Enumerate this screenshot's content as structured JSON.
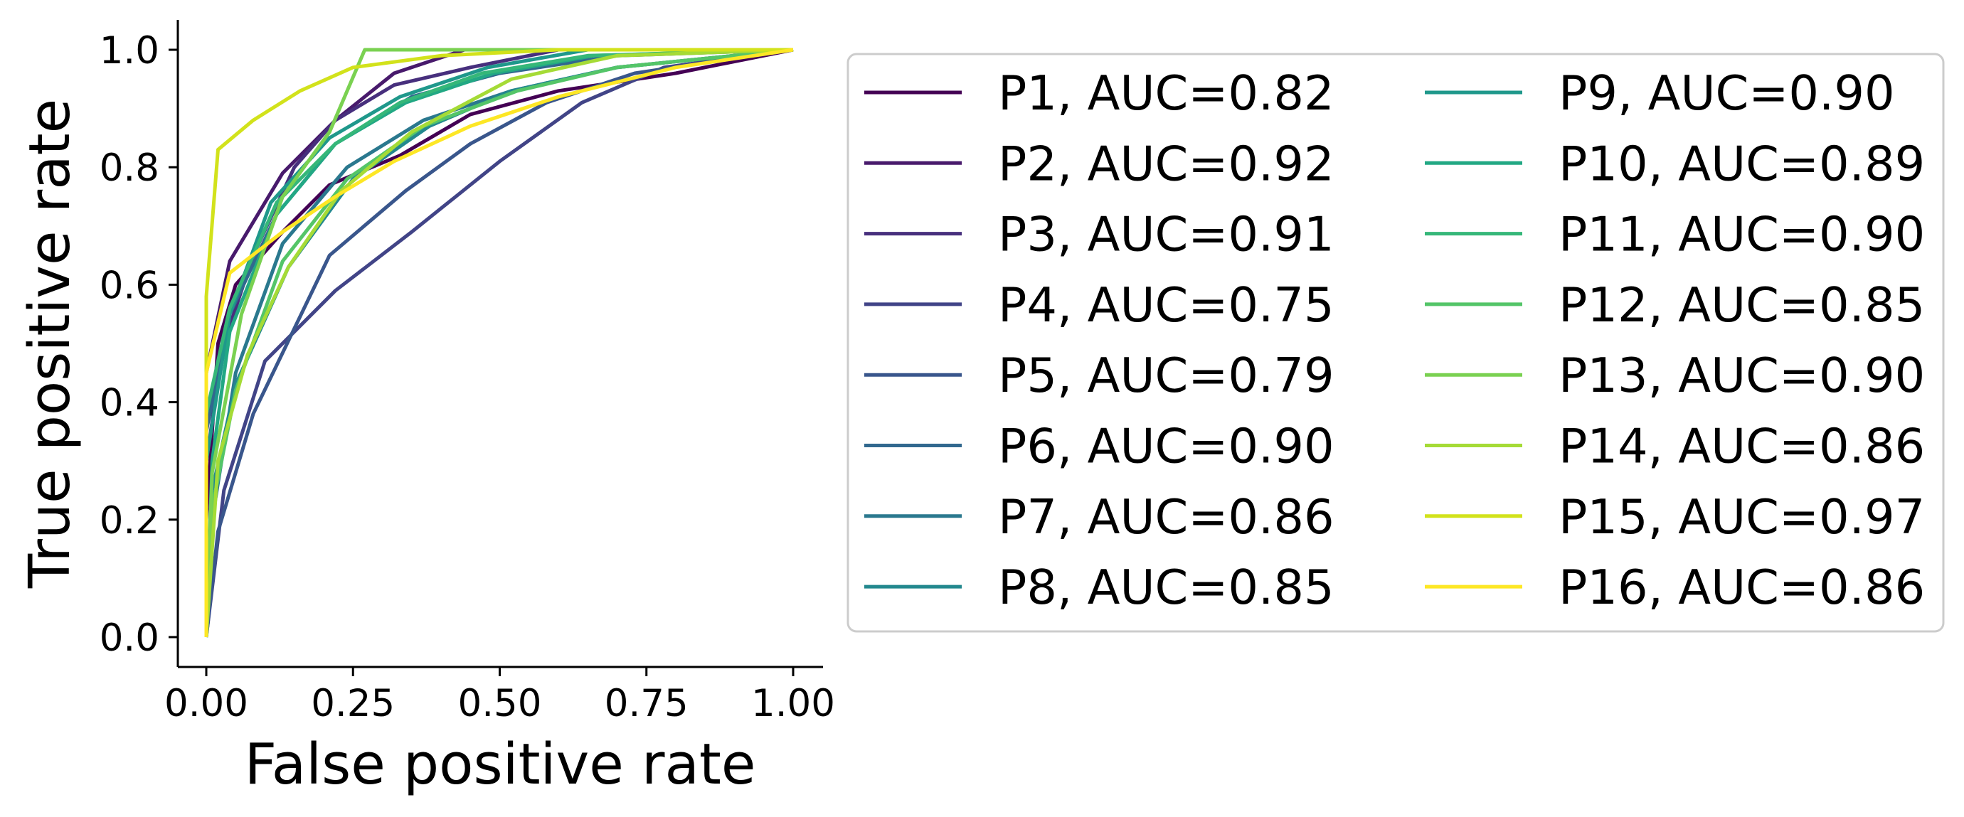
{
  "chart_data": {
    "type": "line",
    "title": "",
    "xlabel": "False positive rate",
    "ylabel": "True positive rate",
    "xlim": [
      -0.05,
      1.05
    ],
    "ylim": [
      -0.05,
      1.05
    ],
    "xticks": [
      "0.00",
      "0.25",
      "0.50",
      "0.75",
      "1.00"
    ],
    "yticks": [
      "0.0",
      "0.2",
      "0.4",
      "0.6",
      "0.8",
      "1.0"
    ],
    "grid": false,
    "legend": {
      "placement": "right, outside",
      "columns": 2
    },
    "series": [
      {
        "name": "P1, AUC=0.82",
        "color": "#440154",
        "x": [
          0,
          0,
          0.02,
          0.05,
          0.13,
          0.21,
          0.33,
          0.45,
          0.6,
          0.8,
          1.0
        ],
        "y": [
          0,
          0.2,
          0.5,
          0.6,
          0.69,
          0.77,
          0.82,
          0.89,
          0.93,
          0.96,
          1.0
        ]
      },
      {
        "name": "P2, AUC=0.92",
        "color": "#481a6c",
        "x": [
          0,
          0,
          0.04,
          0.13,
          0.22,
          0.32,
          0.44,
          0.6,
          1.0
        ],
        "y": [
          0,
          0.45,
          0.64,
          0.79,
          0.88,
          0.96,
          1.0,
          1.0,
          1.0
        ]
      },
      {
        "name": "P3, AUC=0.91",
        "color": "#472f7d",
        "x": [
          0,
          0,
          0.03,
          0.08,
          0.15,
          0.22,
          0.32,
          0.45,
          0.6,
          1.0
        ],
        "y": [
          0,
          0.3,
          0.5,
          0.65,
          0.8,
          0.88,
          0.94,
          0.97,
          1.0,
          1.0
        ]
      },
      {
        "name": "P4, AUC=0.75",
        "color": "#414487",
        "x": [
          0,
          0.03,
          0.1,
          0.22,
          0.35,
          0.5,
          0.64,
          0.78,
          1.0
        ],
        "y": [
          0,
          0.25,
          0.47,
          0.59,
          0.69,
          0.81,
          0.91,
          0.97,
          1.0
        ]
      },
      {
        "name": "P5, AUC=0.79",
        "color": "#39568c",
        "x": [
          0,
          0.02,
          0.08,
          0.21,
          0.34,
          0.45,
          0.58,
          0.73,
          1.0
        ],
        "y": [
          0,
          0.18,
          0.38,
          0.65,
          0.76,
          0.84,
          0.91,
          0.96,
          1.0
        ]
      },
      {
        "name": "P6, AUC=0.90",
        "color": "#31688e",
        "x": [
          0,
          0,
          0.04,
          0.12,
          0.22,
          0.35,
          0.5,
          0.7,
          1.0
        ],
        "y": [
          0,
          0.35,
          0.55,
          0.72,
          0.84,
          0.92,
          0.96,
          0.99,
          1.0
        ]
      },
      {
        "name": "P7, AUC=0.86",
        "color": "#2a788e",
        "x": [
          0,
          0.01,
          0.05,
          0.13,
          0.24,
          0.37,
          0.52,
          0.7,
          1.0
        ],
        "y": [
          0,
          0.2,
          0.45,
          0.67,
          0.8,
          0.88,
          0.93,
          0.97,
          1.0
        ]
      },
      {
        "name": "P8, AUC=0.85",
        "color": "#23888e",
        "x": [
          0,
          0.01,
          0.05,
          0.14,
          0.25,
          0.38,
          0.52,
          0.7,
          1.0
        ],
        "y": [
          0,
          0.25,
          0.43,
          0.63,
          0.78,
          0.87,
          0.93,
          0.97,
          1.0
        ]
      },
      {
        "name": "P9, AUC=0.90",
        "color": "#1f988b",
        "x": [
          0,
          0,
          0.04,
          0.11,
          0.21,
          0.33,
          0.48,
          0.65,
          1.0
        ],
        "y": [
          0,
          0.3,
          0.55,
          0.74,
          0.85,
          0.92,
          0.97,
          1.0,
          1.0
        ]
      },
      {
        "name": "P10, AUC=0.89",
        "color": "#22a884",
        "x": [
          0,
          0.01,
          0.04,
          0.12,
          0.22,
          0.34,
          0.49,
          0.66,
          1.0
        ],
        "y": [
          0,
          0.3,
          0.52,
          0.72,
          0.84,
          0.91,
          0.96,
          0.99,
          1.0
        ]
      },
      {
        "name": "P11, AUC=0.90",
        "color": "#35b779",
        "x": [
          0,
          0,
          0.04,
          0.12,
          0.22,
          0.33,
          0.47,
          0.65,
          1.0
        ],
        "y": [
          0,
          0.38,
          0.56,
          0.74,
          0.84,
          0.91,
          0.96,
          0.99,
          1.0
        ]
      },
      {
        "name": "P12, AUC=0.85",
        "color": "#54c568",
        "x": [
          0,
          0.01,
          0.05,
          0.13,
          0.24,
          0.37,
          0.53,
          0.7,
          1.0
        ],
        "y": [
          0,
          0.22,
          0.42,
          0.64,
          0.78,
          0.87,
          0.93,
          0.97,
          1.0
        ]
      },
      {
        "name": "P13, AUC=0.90",
        "color": "#7ad151",
        "x": [
          0,
          0.01,
          0.06,
          0.13,
          0.21,
          0.27,
          0.4,
          1.0
        ],
        "y": [
          0,
          0.28,
          0.55,
          0.75,
          0.86,
          1.0,
          1.0,
          1.0
        ]
      },
      {
        "name": "P14, AUC=0.86",
        "color": "#a5db36",
        "x": [
          0,
          0.02,
          0.07,
          0.14,
          0.23,
          0.35,
          0.52,
          0.7,
          1.0
        ],
        "y": [
          0,
          0.3,
          0.48,
          0.63,
          0.76,
          0.86,
          0.95,
          0.99,
          1.0
        ]
      },
      {
        "name": "P15, AUC=0.97",
        "color": "#d2e21b",
        "x": [
          0,
          0,
          0.02,
          0.08,
          0.16,
          0.25,
          0.4,
          0.6,
          1.0
        ],
        "y": [
          0,
          0.58,
          0.83,
          0.88,
          0.93,
          0.97,
          0.99,
          1.0,
          1.0
        ]
      },
      {
        "name": "P16, AUC=0.86",
        "color": "#fde725",
        "x": [
          0,
          0,
          0.04,
          0.13,
          0.22,
          0.32,
          0.45,
          0.6,
          0.8,
          1.0
        ],
        "y": [
          0,
          0.45,
          0.62,
          0.69,
          0.75,
          0.81,
          0.87,
          0.92,
          0.97,
          1.0
        ]
      }
    ]
  }
}
